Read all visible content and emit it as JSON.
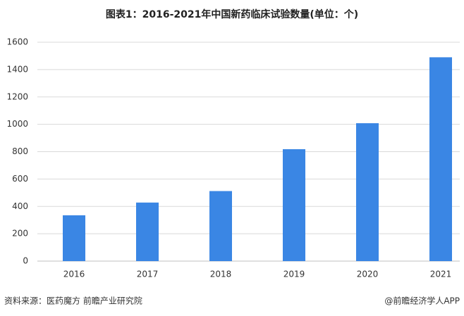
{
  "chart_data": {
    "type": "bar",
    "title": "图表1：2016-2021年中国新药临床试验数量(单位：个)",
    "categories": [
      "2016",
      "2017",
      "2018",
      "2019",
      "2020",
      "2021"
    ],
    "values": [
      335,
      428,
      512,
      818,
      1008,
      1490
    ],
    "color": "#3a86e4",
    "ylim": [
      0,
      1600
    ],
    "yticks": [
      0,
      200,
      400,
      600,
      800,
      1000,
      1200,
      1400,
      1600
    ],
    "grid": true,
    "source": "资料来源：医药魔方 前瞻产业研究院",
    "credit": "@前瞻经济学人APP"
  }
}
